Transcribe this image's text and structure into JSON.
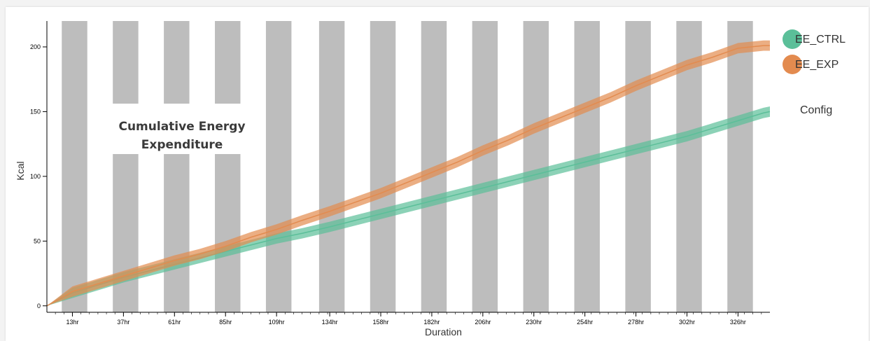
{
  "chart_data": {
    "type": "line",
    "title": "Cumulative Energy Expenditure",
    "xlabel": "Duration",
    "ylabel": "Kcal",
    "xlim": [
      1,
      341
    ],
    "ylim": [
      -5,
      220
    ],
    "x_ticks": [
      13,
      37,
      61,
      85,
      109,
      134,
      158,
      182,
      206,
      230,
      254,
      278,
      302,
      326
    ],
    "x_tick_labels": [
      "13hr",
      "37hr",
      "61hr",
      "85hr",
      "109hr",
      "134hr",
      "158hr",
      "182hr",
      "206hr",
      "230hr",
      "254hr",
      "278hr",
      "302hr",
      "326hr"
    ],
    "y_ticks": [
      0,
      50,
      100,
      150,
      200
    ],
    "y_tick_labels": [
      "0",
      "50",
      "100",
      "150",
      "200"
    ],
    "shading": {
      "description": "dark phase",
      "bands": [
        [
          8,
          20
        ],
        [
          32,
          44
        ],
        [
          56,
          68
        ],
        [
          80,
          92
        ],
        [
          104,
          116
        ],
        [
          129,
          141
        ],
        [
          153,
          165
        ],
        [
          177,
          189
        ],
        [
          201,
          213
        ],
        [
          225,
          237
        ],
        [
          249,
          261
        ],
        [
          273,
          285
        ],
        [
          297,
          309
        ],
        [
          321,
          333
        ]
      ]
    },
    "x": [
      1,
      13,
      25,
      37,
      49,
      61,
      73,
      85,
      97,
      109,
      121,
      134,
      146,
      158,
      170,
      182,
      194,
      206,
      218,
      230,
      242,
      254,
      266,
      278,
      290,
      302,
      314,
      326,
      338,
      341
    ],
    "series": [
      {
        "name": "EE_CTRL",
        "color": "#5bbf99",
        "values": [
          0,
          10,
          16,
          22,
          27,
          32,
          37,
          42,
          47,
          52,
          56,
          61,
          66,
          71,
          76,
          81,
          86,
          91,
          96,
          101,
          106,
          111,
          116,
          121,
          126,
          131,
          137,
          143,
          149,
          150
        ],
        "band": 4
      },
      {
        "name": "EE_EXP",
        "color": "#e38b4f",
        "values": [
          0,
          11,
          17,
          23,
          29,
          35,
          40,
          46,
          53,
          59,
          66,
          73,
          80,
          87,
          95,
          103,
          111,
          120,
          128,
          137,
          145,
          153,
          161,
          170,
          178,
          186,
          192,
          199,
          201,
          201
        ],
        "band": 4
      }
    ],
    "legend_position": "top-right"
  },
  "legend": {
    "config_label": "Config"
  }
}
